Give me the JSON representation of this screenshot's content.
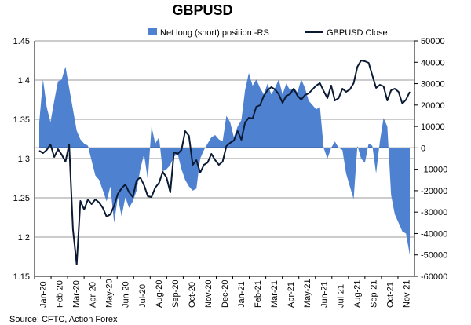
{
  "chart_data": {
    "type": "line+area",
    "title": "GBPUSD",
    "source": "Source: CFTC, Action Forex",
    "colors": {
      "area": "#4f81d1",
      "line": "#0b1a33"
    },
    "left_axis": {
      "min": 1.15,
      "max": 1.45,
      "ticks": [
        "1.45",
        "1.4",
        "1.35",
        "1.3",
        "1.25",
        "1.2",
        "1.15"
      ]
    },
    "right_axis": {
      "min": -60000,
      "max": 50000,
      "ticks": [
        "50000",
        "40000",
        "30000",
        "20000",
        "10000",
        "0",
        "-10000",
        "-20000",
        "-30000",
        "-40000",
        "-50000",
        "-60000"
      ]
    },
    "x_labels": [
      "Jan-20",
      "Feb-20",
      "Mar-20",
      "Apr-20",
      "May-20",
      "Jun-20",
      "Jul-20",
      "Aug-20",
      "Sep-20",
      "Oct-20",
      "Nov-20",
      "Dec-20",
      "Jan-21",
      "Feb-21",
      "Mar-21",
      "Apr-21",
      "May-21",
      "Jun-21",
      "Jul-21",
      "Aug-21",
      "Sep-21",
      "Oct-21",
      "Nov-21"
    ],
    "series": [
      {
        "name": "Net long (short) position -RS",
        "axis": "right",
        "style": "area",
        "values": [
          12000,
          32000,
          19000,
          12000,
          22000,
          31000,
          32000,
          38000,
          28000,
          18000,
          8000,
          4000,
          2000,
          1000,
          -6000,
          -13000,
          -15000,
          -20000,
          -25000,
          -18000,
          -35000,
          -23000,
          -32000,
          -23000,
          -28000,
          -25000,
          -20000,
          -10000,
          -3000,
          -15000,
          10000,
          2000,
          5000,
          -11000,
          -10000,
          -8000,
          -4000,
          -3000,
          -10000,
          -15000,
          -18000,
          -20000,
          -19000,
          -5000,
          -1000,
          2000,
          5000,
          6000,
          4000,
          3000,
          15000,
          12000,
          5000,
          10000,
          13000,
          27000,
          35000,
          29000,
          32000,
          28000,
          25000,
          30000,
          25000,
          28000,
          32000,
          25000,
          30000,
          27000,
          28000,
          26000,
          32000,
          28000,
          22000,
          20000,
          18000,
          19000,
          0,
          -5000,
          0,
          3000,
          0,
          -1000,
          -12000,
          -18000,
          -24000,
          1000,
          -5000,
          -7000,
          2000,
          1000,
          -12000,
          3000,
          14000,
          10000,
          -22000,
          -31000,
          -35000,
          -39000,
          -40000,
          -50000
        ]
      },
      {
        "name": "GBPUSD Close",
        "axis": "left",
        "style": "line",
        "values": [
          1.31,
          1.307,
          1.311,
          1.318,
          1.302,
          1.312,
          1.305,
          1.296,
          1.318,
          1.21,
          1.165,
          1.246,
          1.235,
          1.248,
          1.242,
          1.248,
          1.244,
          1.237,
          1.226,
          1.229,
          1.24,
          1.255,
          1.262,
          1.267,
          1.257,
          1.251,
          1.272,
          1.276,
          1.266,
          1.252,
          1.251,
          1.263,
          1.269,
          1.283,
          1.276,
          1.257,
          1.308,
          1.306,
          1.311,
          1.335,
          1.329,
          1.292,
          1.298,
          1.282,
          1.292,
          1.295,
          1.306,
          1.298,
          1.292,
          1.296,
          1.316,
          1.32,
          1.323,
          1.335,
          1.324,
          1.346,
          1.352,
          1.351,
          1.366,
          1.368,
          1.38,
          1.387,
          1.391,
          1.388,
          1.382,
          1.371,
          1.38,
          1.382,
          1.389,
          1.38,
          1.375,
          1.381,
          1.383,
          1.388,
          1.393,
          1.396,
          1.386,
          1.377,
          1.393,
          1.374,
          1.377,
          1.389,
          1.385,
          1.388,
          1.396,
          1.417,
          1.425,
          1.424,
          1.422,
          1.406,
          1.39,
          1.394,
          1.392,
          1.374,
          1.387,
          1.389,
          1.385,
          1.37,
          1.375,
          1.385
        ]
      }
    ]
  }
}
